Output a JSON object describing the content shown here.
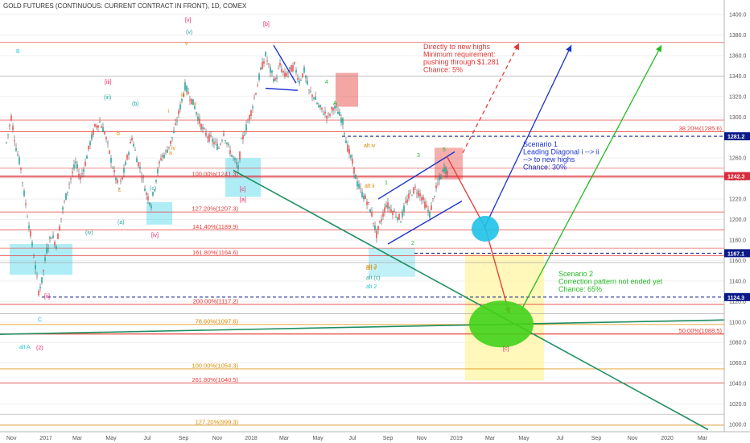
{
  "header": {
    "title": "GOLD FUTURES (CONTINUOUS: CURRENT CONTRACT IN FRONT), 1D, COMEX"
  },
  "chart_data": {
    "type": "candlestick",
    "y_axis": {
      "ticks": [
        "1400.0",
        "1380.0",
        "1360.0",
        "1340.0",
        "1320.0",
        "1300.0",
        "1280.0",
        "1260.0",
        "1240.0",
        "1220.0",
        "1200.0",
        "1180.0",
        "1160.0",
        "1140.0",
        "1120.0",
        "1100.0",
        "1080.0",
        "1060.0",
        "1040.0",
        "1020.0",
        "1000.0"
      ],
      "ylim": [
        993,
        1402
      ],
      "price_tags": [
        {
          "text": "1281.2",
          "value": 1281.2,
          "color": "#0b1a8a"
        },
        {
          "text": "1242.3",
          "value": 1242.3,
          "color": "#d92a3a"
        },
        {
          "text": "1167.1",
          "value": 1167.1,
          "color": "#0b1a8a"
        },
        {
          "text": "1124.3",
          "value": 1124.3,
          "color": "#0b1a8a"
        }
      ]
    },
    "x_axis": {
      "ticks": [
        "Nov",
        "2017",
        "Mar",
        "May",
        "Jul",
        "Sep",
        "Nov",
        "2018",
        "Mar",
        "May",
        "Jul",
        "Sep",
        "Nov",
        "2019",
        "Mar",
        "May",
        "Jul",
        "Sep",
        "Nov",
        "2020",
        "Mar"
      ]
    },
    "fib_levels": [
      {
        "text": "38.20%(1285.6)",
        "value": 1285.6,
        "color": "#e53935",
        "pos": "right"
      },
      {
        "text": "100.00%(1241.3)",
        "value": 1241.3,
        "color": "#e53935",
        "pos": "left"
      },
      {
        "text": "127.20%(1207.3)",
        "value": 1207.3,
        "color": "#e53935",
        "pos": "left"
      },
      {
        "text": "141.40%(1189.9)",
        "value": 1189.9,
        "color": "#e53935",
        "pos": "left"
      },
      {
        "text": "161.80%(1164.6)",
        "value": 1164.6,
        "color": "#e53935",
        "pos": "left"
      },
      {
        "text": "200.00%(1117.2)",
        "value": 1117.2,
        "color": "#e53935",
        "pos": "left"
      },
      {
        "text": "78.60%(1097.6)",
        "value": 1097.6,
        "color": "#e08a00",
        "pos": "left"
      },
      {
        "text": "50.00%(1088.5)",
        "value": 1088.5,
        "color": "#e53935",
        "pos": "right"
      },
      {
        "text": "100.00%(1054.3)",
        "value": 1054.3,
        "color": "#e08a00",
        "pos": "left"
      },
      {
        "text": "261.80%(1040.5)",
        "value": 1040.5,
        "color": "#e53935",
        "pos": "left"
      },
      {
        "text": "127.20%(999.3)",
        "value": 999.3,
        "color": "#e08a00",
        "pos": "left"
      }
    ],
    "annotations": [
      {
        "lines": [
          "Directly to new highs",
          "Minimum requirement:",
          "pushing through $1.281",
          "Chance: 5%"
        ],
        "color": "#e53935"
      },
      {
        "lines": [
          "Scenario 1",
          "Leading Diagonal i --> ii",
          "--> to new highs",
          "Chance: 30%"
        ],
        "color": "#1a33cc"
      },
      {
        "lines": [
          "Scenario 2",
          "Correction pattern not ended yet",
          "Chance: 65%"
        ],
        "color": "#22bb22"
      }
    ],
    "wave_labels": [
      {
        "t": "[v]",
        "c": "#e91e63"
      },
      {
        "t": "v",
        "c": "#e08a00"
      },
      {
        "t": "(v)",
        "c": "#26a69a"
      },
      {
        "t": "[b]",
        "c": "#e91e63"
      },
      {
        "t": "B",
        "c": "#26c6da"
      },
      {
        "t": "[iii]",
        "c": "#e91e63"
      },
      {
        "t": "(iii)",
        "c": "#26a69a"
      },
      {
        "t": "(iv)",
        "c": "#26a69a"
      },
      {
        "t": "(a)",
        "c": "#26a69a"
      },
      {
        "t": "(b)",
        "c": "#26a69a"
      },
      {
        "t": "(c)",
        "c": "#26a69a"
      },
      {
        "t": "[iv]",
        "c": "#e91e63"
      },
      {
        "t": "[a]",
        "c": "#e91e63"
      },
      {
        "t": "[c]",
        "c": "#e91e63"
      },
      {
        "t": "[ii]",
        "c": "#e91e63"
      },
      {
        "t": "a",
        "c": "#e08a00"
      },
      {
        "t": "b",
        "c": "#e08a00"
      },
      {
        "t": "c",
        "c": "#e08a00"
      },
      {
        "t": "i",
        "c": "#e08a00"
      },
      {
        "t": "ii",
        "c": "#e08a00"
      },
      {
        "t": "iii",
        "c": "#e08a00"
      },
      {
        "t": "iv",
        "c": "#e08a00"
      },
      {
        "t": "1",
        "c": "#22bb22"
      },
      {
        "t": "2",
        "c": "#22bb22"
      },
      {
        "t": "3",
        "c": "#22bb22"
      },
      {
        "t": "4",
        "c": "#22bb22"
      },
      {
        "t": "5",
        "c": "#22bb22"
      },
      {
        "t": "A",
        "c": "#22bb22"
      },
      {
        "t": "C",
        "c": "#26c6da"
      },
      {
        "t": "alt A",
        "c": "#26c6da"
      },
      {
        "t": "(2)",
        "c": "#e91e63"
      },
      {
        "t": "alt iv",
        "c": "#e08a00"
      },
      {
        "t": "alt ii",
        "c": "#e08a00"
      },
      {
        "t": "alt v",
        "c": "#e08a00"
      },
      {
        "t": "alt (c)",
        "c": "#26a69a"
      },
      {
        "t": "alt 2",
        "c": "#26c6da"
      },
      {
        "t": "alt 3",
        "c": "#e08a00"
      },
      {
        "t": "[c]",
        "c": "#e91e63"
      }
    ]
  }
}
